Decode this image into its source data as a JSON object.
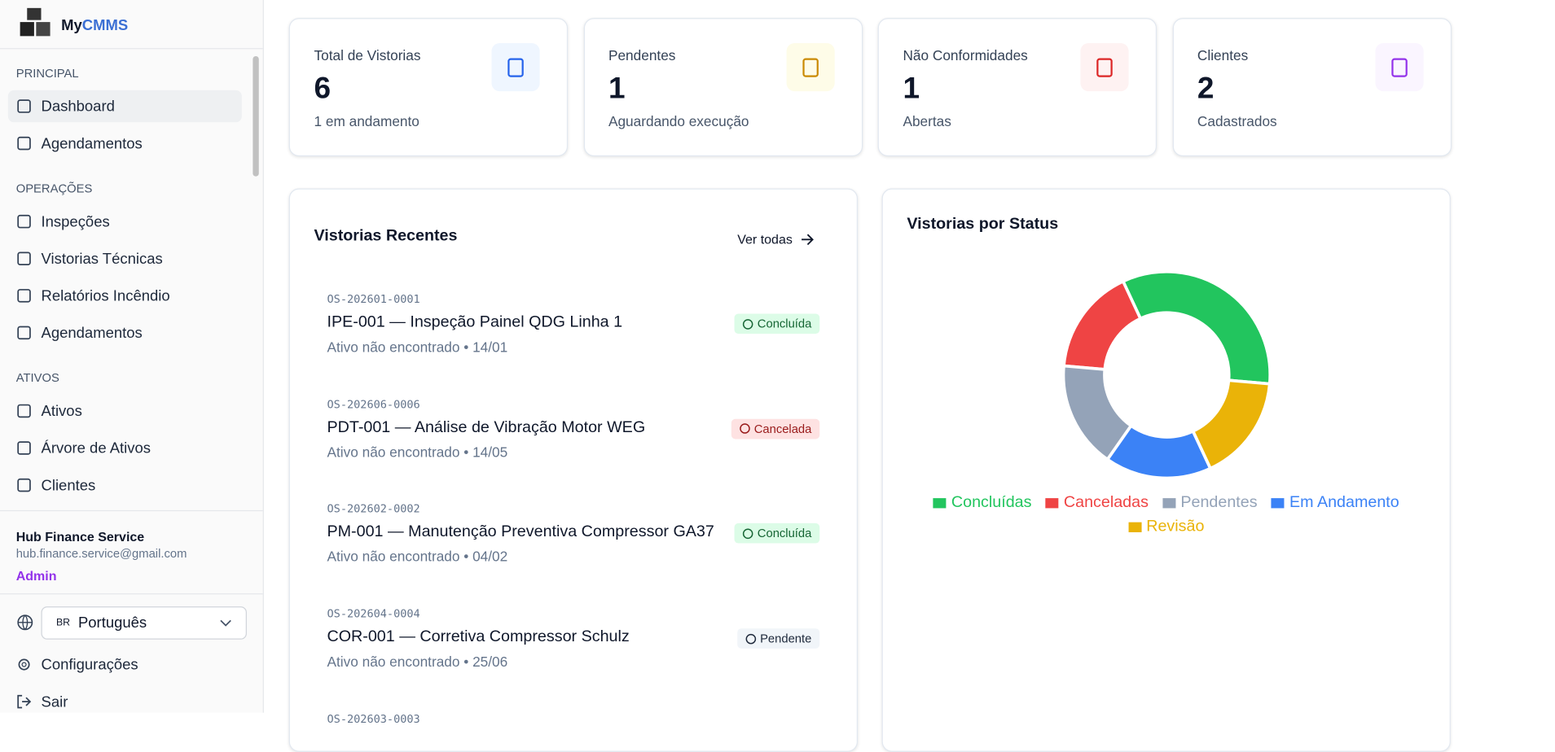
{
  "sidebar": {
    "brand": {
      "prefix": "My",
      "suffix": "CMMS"
    },
    "sections": [
      {
        "title": "PRINCIPAL",
        "items": [
          "Dashboard",
          "Agendamentos"
        ]
      },
      {
        "title": "OPERAÇÕES",
        "items": [
          "Inspeções",
          "Vistorias Técnicas",
          "Relatórios Incêndio",
          "Agendamentos"
        ]
      },
      {
        "title": "ATIVOS",
        "items": [
          "Ativos",
          "Árvore de Ativos",
          "Clientes"
        ]
      }
    ],
    "user": {
      "name": "Hub Finance Service",
      "email": "hub.finance.service@gmail.com",
      "role": "Admin"
    },
    "language": {
      "flag": "BR",
      "label": "Português"
    },
    "footer": [
      "Configurações",
      "Sair"
    ]
  },
  "stats": [
    {
      "label": "Total de Vistorias",
      "value": "6",
      "note": "1 em andamento"
    },
    {
      "label": "Pendentes",
      "value": "1",
      "note": "Aguardando execução"
    },
    {
      "label": "Não Conformidades",
      "value": "1",
      "note": "Abertas"
    },
    {
      "label": "Clientes",
      "value": "2",
      "note": "Cadastrados"
    }
  ],
  "recent": {
    "title": "Vistorias Recentes",
    "link": "Ver todas",
    "items": [
      {
        "code": "OS-202601-0001",
        "title": "IPE-001 — Inspeção Painel QDG Linha 1",
        "sub": "Ativo não encontrado • 14/01",
        "status": "Concluída"
      },
      {
        "code": "OS-202606-0006",
        "title": "PDT-001 — Análise de Vibração Motor WEG",
        "sub": "Ativo não encontrado • 14/05",
        "status": "Cancelada"
      },
      {
        "code": "OS-202602-0002",
        "title": "PM-001 — Manutenção Preventiva Compressor GA37",
        "sub": "Ativo não encontrado • 04/02",
        "status": "Concluída"
      },
      {
        "code": "OS-202604-0004",
        "title": "COR-001 — Corretiva Compressor Schulz",
        "sub": "Ativo não encontrado • 25/06",
        "status": "Pendente"
      },
      {
        "code": "OS-202603-0003"
      }
    ]
  },
  "chart_data": {
    "type": "pie",
    "title": "Vistorias por Status",
    "categories": [
      "Concluídas",
      "Canceladas",
      "Pendentes",
      "Em Andamento",
      "Revisão"
    ],
    "values": [
      2,
      1,
      1,
      1,
      1
    ],
    "colors": [
      "#22c55e",
      "#ef4444",
      "#94a3b8",
      "#3b82f6",
      "#eab308"
    ],
    "donut": true,
    "legend": "bottom"
  }
}
